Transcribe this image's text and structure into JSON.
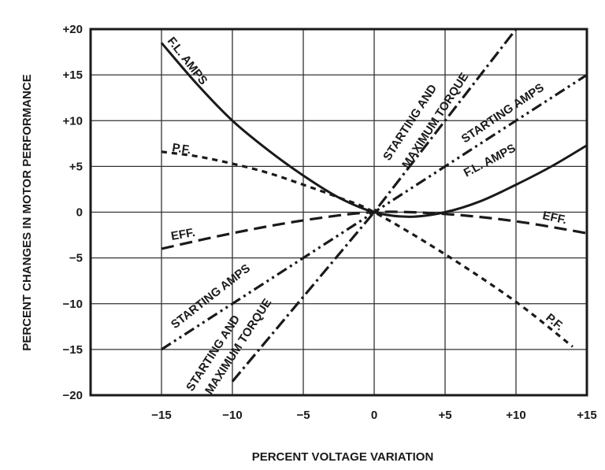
{
  "chart_data": {
    "type": "line",
    "title": "",
    "xlabel": "PERCENT VOLTAGE VARIATION",
    "ylabel": "PERCENT CHANGES IN MOTOR PERFORMANCE",
    "xlim": [
      -20,
      15
    ],
    "ylim": [
      -20,
      20
    ],
    "grid": true,
    "x_ticks": [
      -15,
      -10,
      -5,
      0,
      5,
      10,
      15
    ],
    "x_tick_labels": [
      "−15",
      "−10",
      "−5",
      "0",
      "+5",
      "+10",
      "+15"
    ],
    "y_ticks": [
      20,
      15,
      10,
      5,
      0,
      -5,
      -10,
      -15,
      -20
    ],
    "y_tick_labels": [
      "+20",
      "+15",
      "+10",
      "+5",
      "0",
      "−5",
      "−10",
      "−15",
      "−20"
    ],
    "series": [
      {
        "name": "F.L. AMPS",
        "style": "solid",
        "x": [
          -15,
          -12.5,
          -10,
          -7.5,
          -5,
          -2.5,
          0,
          2.5,
          5,
          7.5,
          10,
          12.5,
          15
        ],
        "y": [
          18.5,
          14,
          10,
          6.8,
          4,
          1.6,
          0,
          -0.5,
          0,
          1.2,
          3,
          5,
          7.3
        ]
      },
      {
        "name": "P.F.",
        "style": "short-dash",
        "x": [
          -15,
          -12.5,
          -10,
          -7.5,
          -5,
          -2.5,
          0,
          5,
          10,
          14
        ],
        "y": [
          6.6,
          6.1,
          5.3,
          4.3,
          3,
          1.6,
          0,
          -4.6,
          -9.8,
          -14.7
        ]
      },
      {
        "name": "EFF.",
        "style": "long-dash",
        "x": [
          -15,
          -10,
          -5,
          0,
          5,
          10,
          15
        ],
        "y": [
          -4,
          -2.3,
          -0.9,
          0,
          -0.2,
          -1,
          -2.3
        ]
      },
      {
        "name": "STARTING AMPS",
        "style": "dash-dot-dot",
        "x": [
          -15,
          0,
          15
        ],
        "y": [
          -15,
          0,
          15
        ]
      },
      {
        "name": "STARTING AND MAXIMUM TORQUE",
        "style": "dash-dot",
        "x": [
          -10,
          0,
          10
        ],
        "y": [
          -18.5,
          0,
          20
        ]
      }
    ],
    "annotations": [
      {
        "text": "F.L. AMPS",
        "series": "F.L. AMPS"
      },
      {
        "text": "F.L. AMPS",
        "series": "F.L. AMPS"
      },
      {
        "text": "P.F.",
        "series": "P.F."
      },
      {
        "text": "P.F.",
        "series": "P.F."
      },
      {
        "text": "EFF.",
        "series": "EFF."
      },
      {
        "text": "EFF.",
        "series": "EFF."
      },
      {
        "text": "STARTING AMPS",
        "series": "STARTING AMPS"
      },
      {
        "text": "STARTING AMPS",
        "series": "STARTING AMPS"
      },
      {
        "text": "STARTING AND",
        "series": "STARTING AND MAXIMUM TORQUE"
      },
      {
        "text": "MAXIMUM TORQUE",
        "series": "STARTING AND MAXIMUM TORQUE"
      },
      {
        "text": "STARTING AND",
        "series": "STARTING AND MAXIMUM TORQUE"
      },
      {
        "text": "MAXIMUM TORQUE",
        "series": "STARTING AND MAXIMUM TORQUE"
      }
    ],
    "colors": {
      "line": "#1a1a1a",
      "grid": "#333333",
      "background": "#ffffff"
    }
  }
}
